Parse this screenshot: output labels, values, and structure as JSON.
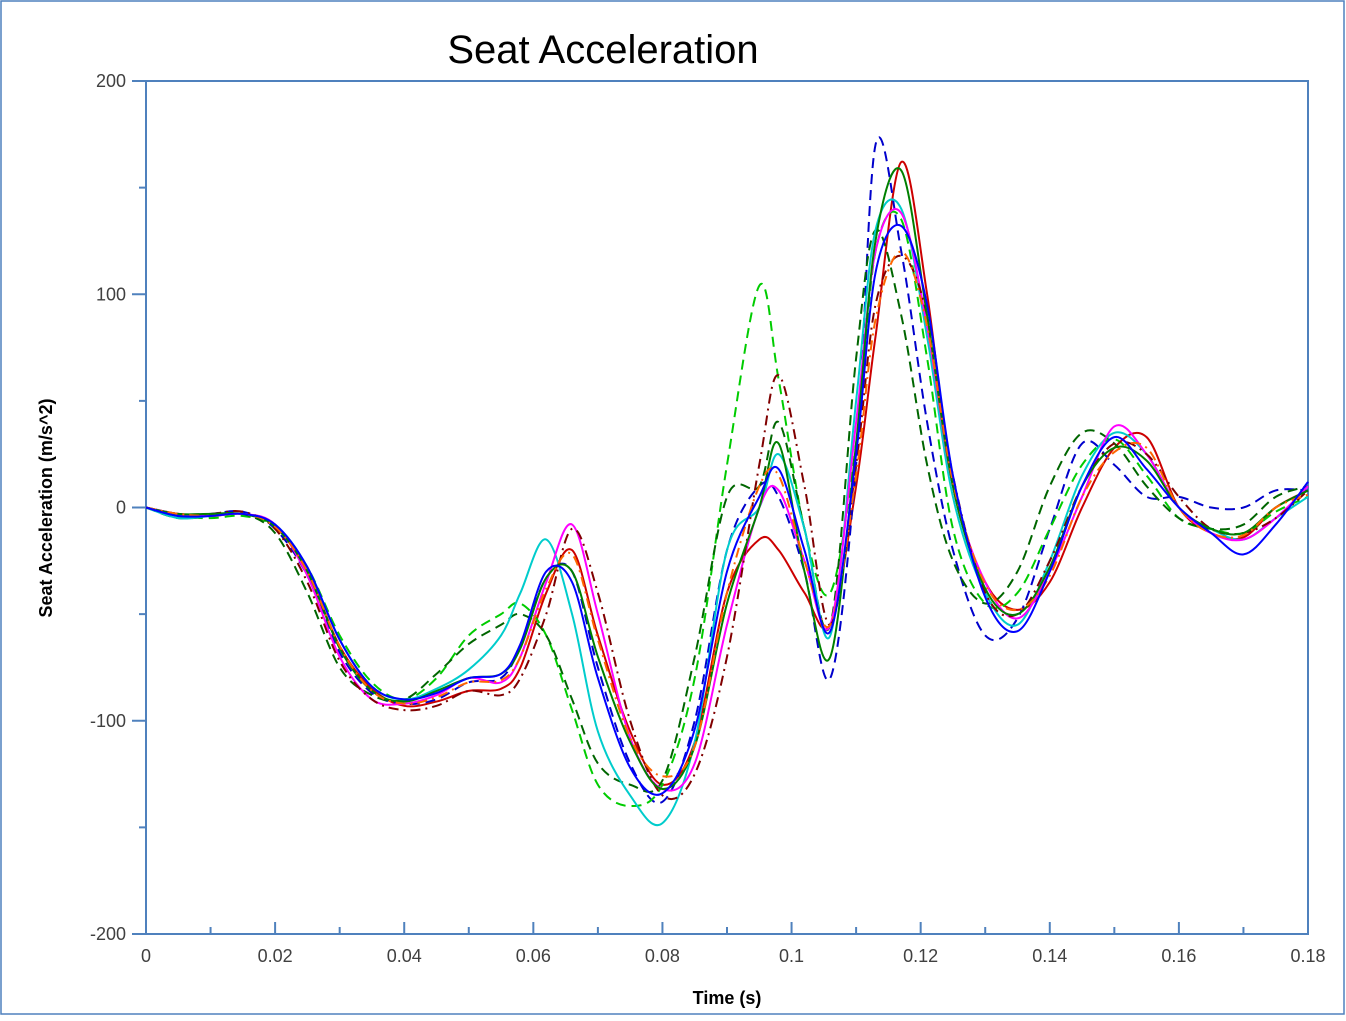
{
  "chart_data": {
    "type": "line",
    "title": "Seat Acceleration",
    "xlabel": "Time (s)",
    "ylabel": "Seat Acceleration (m/s^2)",
    "xlim": [
      0,
      0.18
    ],
    "ylim": [
      -200,
      200
    ],
    "xticks": [
      0,
      0.02,
      0.04,
      0.06,
      0.08,
      0.1,
      0.12,
      0.14,
      0.16,
      0.18
    ],
    "xtick_labels": [
      "0",
      "0.02",
      "0.04",
      "0.06",
      "0.08",
      "0.1",
      "0.12",
      "0.14",
      "0.16",
      "0.18"
    ],
    "yticks": [
      -200,
      -100,
      0,
      100,
      200
    ],
    "ytick_labels": [
      "-200",
      "-100",
      "0",
      "100",
      "200"
    ],
    "grid": false,
    "legend": "none",
    "colors": {
      "axis": "#4f81bd",
      "frame": "#4f81bd"
    },
    "time": [
      0,
      0.005,
      0.01,
      0.015,
      0.02,
      0.025,
      0.03,
      0.035,
      0.04,
      0.045,
      0.05,
      0.055,
      0.058,
      0.062,
      0.066,
      0.07,
      0.075,
      0.08,
      0.085,
      0.09,
      0.095,
      0.098,
      0.102,
      0.106,
      0.11,
      0.113,
      0.117,
      0.121,
      0.125,
      0.13,
      0.135,
      0.14,
      0.145,
      0.15,
      0.155,
      0.16,
      0.165,
      0.17,
      0.175,
      0.18
    ],
    "series": [
      {
        "color": "#cc0000",
        "style": "solid",
        "values": [
          0,
          -3,
          -4,
          -3,
          -8,
          -30,
          -65,
          -85,
          -93,
          -91,
          -86,
          -85,
          -75,
          -40,
          -20,
          -60,
          -105,
          -130,
          -110,
          -40,
          -15,
          -20,
          -40,
          -55,
          10,
          80,
          162,
          100,
          10,
          -35,
          -48,
          -35,
          0,
          28,
          33,
          0,
          -12,
          -14,
          0,
          8
        ]
      },
      {
        "color": "#0000cc",
        "style": "dashed",
        "values": [
          0,
          -4,
          -3,
          -2,
          -10,
          -32,
          -68,
          -87,
          -92,
          -90,
          -82,
          -80,
          -65,
          -33,
          -30,
          -75,
          -120,
          -138,
          -100,
          -20,
          10,
          5,
          -30,
          -80,
          20,
          170,
          120,
          40,
          -20,
          -60,
          -52,
          -10,
          30,
          20,
          5,
          5,
          0,
          0,
          8,
          8
        ]
      },
      {
        "color": "#00cc00",
        "style": "dashed",
        "values": [
          0,
          -4,
          -5,
          -4,
          -9,
          -28,
          -60,
          -82,
          -90,
          -80,
          -60,
          -50,
          -45,
          -60,
          -95,
          -130,
          -140,
          -130,
          -80,
          20,
          104,
          60,
          -10,
          -40,
          30,
          120,
          135,
          70,
          -10,
          -45,
          -40,
          -10,
          20,
          32,
          15,
          -5,
          -10,
          -12,
          -2,
          5
        ]
      },
      {
        "color": "#006600",
        "style": "dashed",
        "values": [
          0,
          -5,
          -4,
          -3,
          -12,
          -40,
          -75,
          -88,
          -90,
          -78,
          -64,
          -55,
          -50,
          -60,
          -90,
          -120,
          -130,
          -128,
          -70,
          5,
          10,
          40,
          -10,
          -55,
          70,
          130,
          90,
          20,
          -25,
          -45,
          -30,
          10,
          35,
          30,
          10,
          -5,
          -10,
          -8,
          5,
          10
        ]
      },
      {
        "color": "#00cccc",
        "style": "solid",
        "values": [
          0,
          -5,
          -4,
          -3,
          -8,
          -28,
          -62,
          -84,
          -90,
          -85,
          -76,
          -60,
          -40,
          -15,
          -50,
          -105,
          -135,
          -148,
          -110,
          -20,
          0,
          25,
          -10,
          -60,
          50,
          130,
          140,
          80,
          5,
          -40,
          -55,
          -25,
          15,
          35,
          25,
          0,
          -10,
          -15,
          -5,
          5
        ]
      },
      {
        "color": "#ff00ff",
        "style": "solid",
        "values": [
          0,
          -3,
          -4,
          -3,
          -8,
          -32,
          -70,
          -90,
          -92,
          -88,
          -80,
          -82,
          -70,
          -35,
          -8,
          -50,
          -108,
          -132,
          -120,
          -55,
          0,
          8,
          -25,
          -55,
          40,
          120,
          138,
          85,
          10,
          -35,
          -52,
          -30,
          5,
          38,
          25,
          0,
          -12,
          -15,
          -5,
          10
        ]
      },
      {
        "color": "#800000",
        "style": "dashdot",
        "values": [
          0,
          -3,
          -3,
          -2,
          -10,
          -35,
          -72,
          -90,
          -95,
          -93,
          -86,
          -88,
          -80,
          -50,
          -10,
          -40,
          -100,
          -135,
          -125,
          -70,
          20,
          62,
          10,
          -55,
          20,
          95,
          118,
          90,
          15,
          -40,
          -50,
          -25,
          10,
          30,
          25,
          5,
          -10,
          -12,
          -5,
          8
        ]
      },
      {
        "color": "#008000",
        "style": "solid",
        "values": [
          0,
          -3,
          -3,
          -3,
          -9,
          -30,
          -66,
          -86,
          -91,
          -86,
          -80,
          -78,
          -66,
          -33,
          -30,
          -70,
          -110,
          -132,
          -112,
          -45,
          0,
          30,
          -30,
          -70,
          30,
          125,
          158,
          90,
          10,
          -38,
          -50,
          -28,
          10,
          28,
          22,
          0,
          -10,
          -12,
          0,
          8
        ]
      },
      {
        "color": "#ff6600",
        "style": "dashdot",
        "values": [
          0,
          -3,
          -4,
          -3,
          -9,
          -30,
          -65,
          -86,
          -92,
          -89,
          -82,
          -81,
          -70,
          -38,
          -22,
          -62,
          -108,
          -126,
          -112,
          -40,
          10,
          15,
          -25,
          -55,
          15,
          88,
          120,
          85,
          12,
          -36,
          -48,
          -32,
          5,
          26,
          28,
          0,
          -12,
          -13,
          0,
          6
        ]
      },
      {
        "color": "#0000ff",
        "style": "solid",
        "values": [
          0,
          -4,
          -4,
          -3,
          -8,
          -28,
          -62,
          -84,
          -90,
          -87,
          -80,
          -78,
          -64,
          -30,
          -35,
          -80,
          -122,
          -134,
          -104,
          -30,
          5,
          18,
          -20,
          -58,
          25,
          110,
          132,
          95,
          15,
          -42,
          -58,
          -30,
          10,
          33,
          18,
          0,
          -12,
          -22,
          -8,
          12
        ]
      }
    ]
  }
}
